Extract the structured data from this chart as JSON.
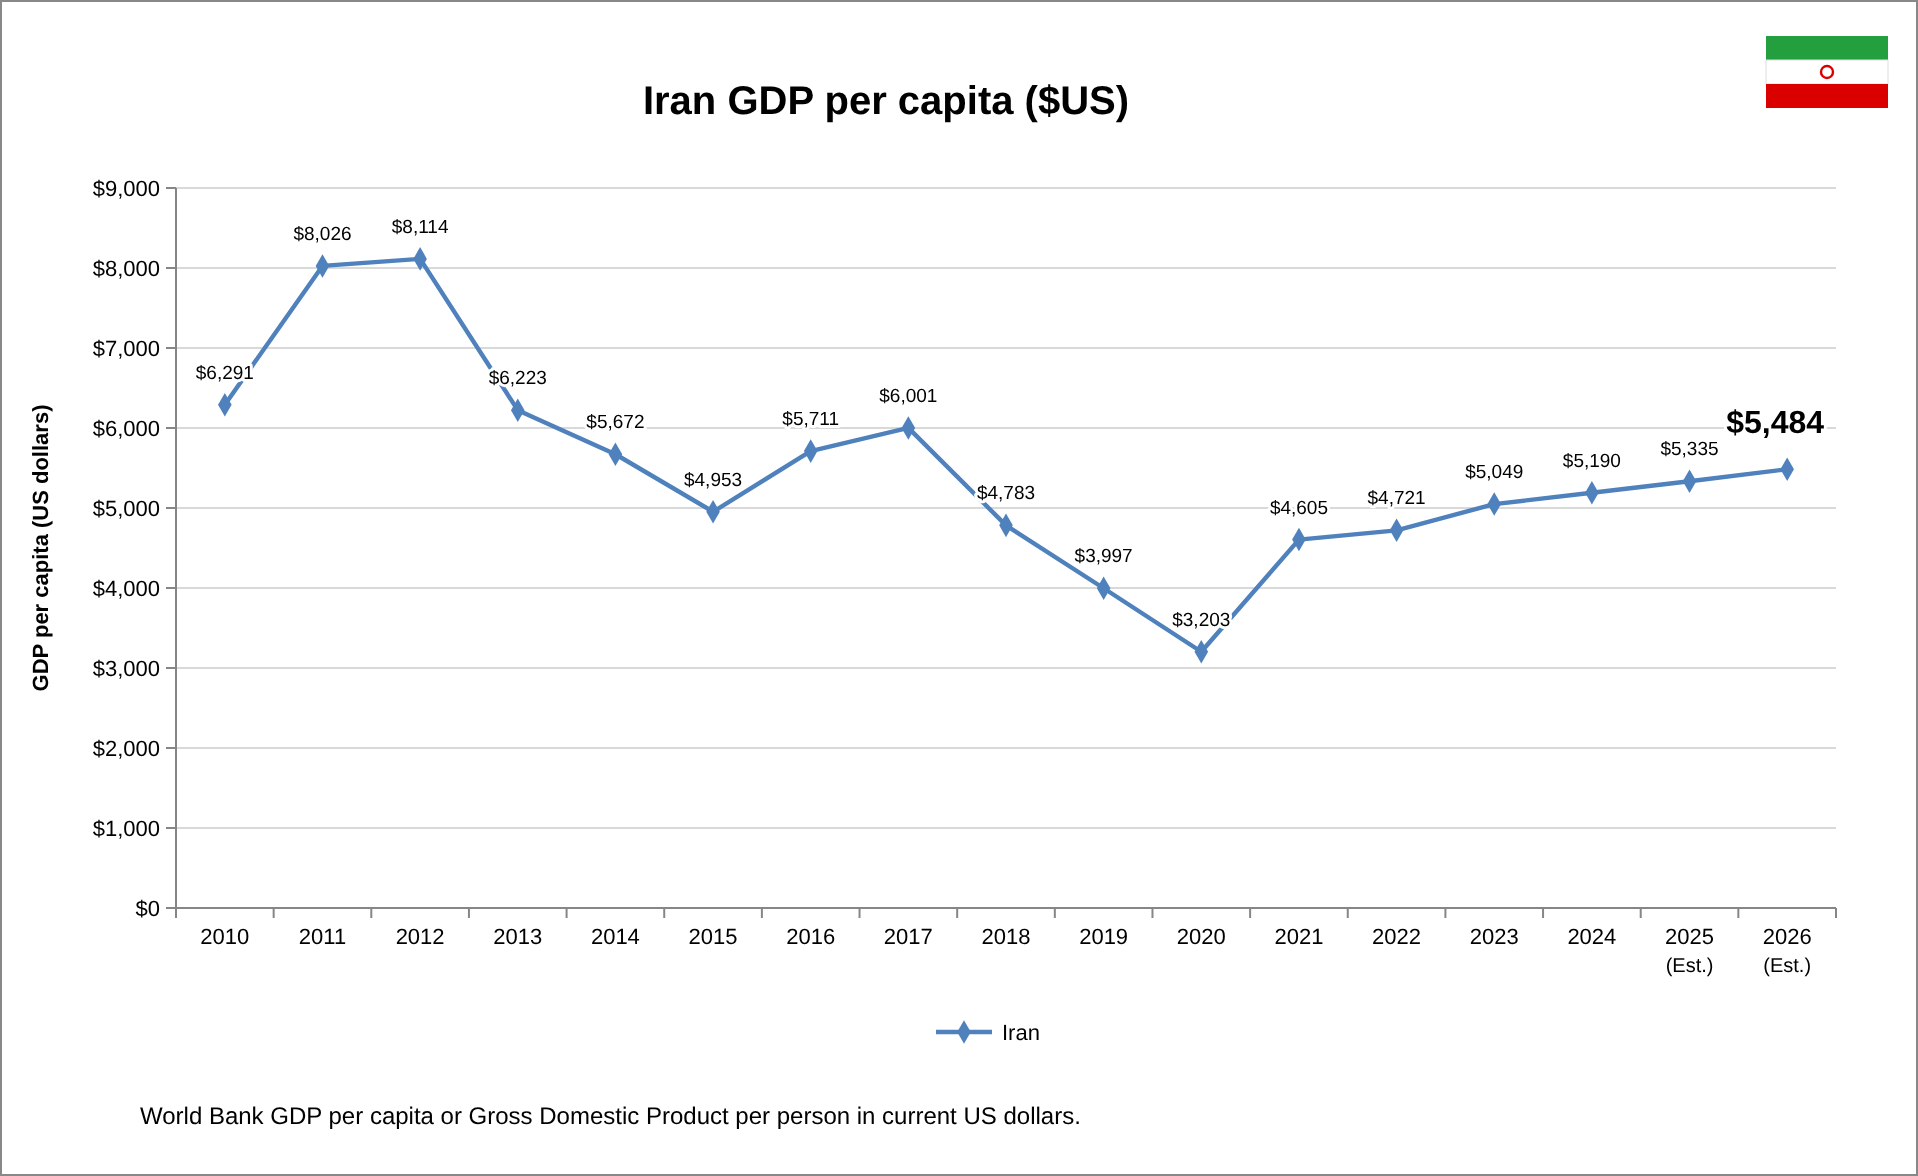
{
  "chart_data": {
    "type": "line",
    "title": "Iran GDP per capita ($US)",
    "ylabel": "GDP per capita (US dollars)",
    "categories": [
      "2010",
      "2011",
      "2012",
      "2013",
      "2014",
      "2015",
      "2016",
      "2017",
      "2018",
      "2019",
      "2020",
      "2021",
      "2022",
      "2023",
      "2024",
      "2025 (Est.)",
      "2026 (Est.)"
    ],
    "series": [
      {
        "name": "Iran",
        "color": "#4f81bd",
        "values": [
          6291,
          8026,
          8114,
          6223,
          5672,
          4953,
          5711,
          6001,
          4783,
          3997,
          3203,
          4605,
          4721,
          5049,
          5190,
          5335,
          5484
        ]
      }
    ],
    "value_labels": [
      "$6,291",
      "$8,026",
      "$8,114",
      "$6,223",
      "$5,672",
      "$4,953",
      "$5,711",
      "$6,001",
      "$4,783",
      "$3,997",
      "$3,203",
      "$4,605",
      "$4,721",
      "$5,049",
      "$5,190",
      "$5,335",
      "$5,484"
    ],
    "ylim": [
      0,
      9000
    ],
    "yticks": [
      {
        "value": 0,
        "label": "$0"
      },
      {
        "value": 1000,
        "label": "$1,000"
      },
      {
        "value": 2000,
        "label": "$2,000"
      },
      {
        "value": 3000,
        "label": "$3,000"
      },
      {
        "value": 4000,
        "label": "$4,000"
      },
      {
        "value": 5000,
        "label": "$5,000"
      },
      {
        "value": 6000,
        "label": "$6,000"
      },
      {
        "value": 7000,
        "label": "$7,000"
      },
      {
        "value": 8000,
        "label": "$8,000"
      },
      {
        "value": 9000,
        "label": "$9,000"
      }
    ],
    "grid": "y",
    "legend": "bottom",
    "marker": "diamond",
    "line_style": "solid",
    "annotations": [
      "World Bank GDP per capita or Gross Domestic Product per person in current US dollars."
    ]
  }
}
